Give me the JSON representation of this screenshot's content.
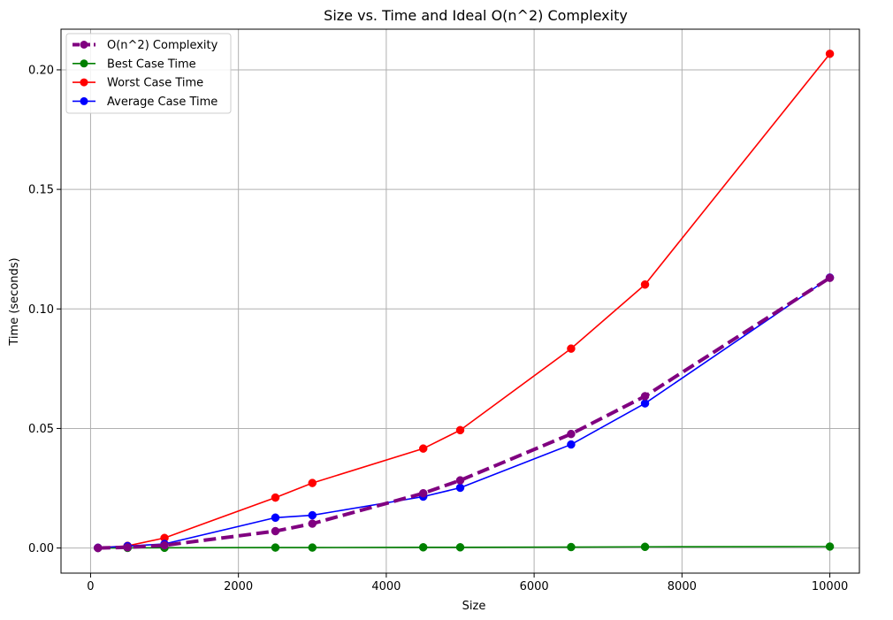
{
  "chart_data": {
    "type": "line",
    "title": "Size vs. Time and Ideal O(n^2) Complexity",
    "xlabel": "Size",
    "ylabel": "Time (seconds)",
    "xlim": [
      -400,
      10400
    ],
    "ylim": [
      -0.0105,
      0.217
    ],
    "x_ticks": [
      0,
      2000,
      4000,
      6000,
      8000,
      10000
    ],
    "x_tick_labels": [
      "0",
      "2000",
      "4000",
      "6000",
      "8000",
      "10000"
    ],
    "y_ticks": [
      0.0,
      0.05,
      0.1,
      0.15,
      0.2
    ],
    "y_tick_labels": [
      "0.00",
      "0.05",
      "0.10",
      "0.15",
      "0.20"
    ],
    "grid": true,
    "legend_position": "top-left",
    "x": [
      100,
      500,
      1000,
      2500,
      3000,
      4500,
      5000,
      6500,
      7500,
      10000
    ],
    "series": [
      {
        "name": "O(n^2) Complexity",
        "color": "#800080",
        "style": "dashed",
        "values": [
          1.13e-05,
          0.000283,
          0.00113,
          0.00706,
          0.0102,
          0.0229,
          0.0283,
          0.0477,
          0.0635,
          0.113
        ]
      },
      {
        "name": "Best Case Time",
        "color": "#008000",
        "style": "solid",
        "values": [
          1e-05,
          5e-05,
          0.0001,
          0.0002,
          0.0002,
          0.0003,
          0.0003,
          0.0004,
          0.0005,
          0.0006
        ]
      },
      {
        "name": "Worst Case Time",
        "color": "#ff0000",
        "style": "solid",
        "values": [
          0.0001,
          0.0009,
          0.0042,
          0.0211,
          0.0272,
          0.0416,
          0.0493,
          0.0834,
          0.1102,
          0.2067
        ]
      },
      {
        "name": "Average Case Time",
        "color": "#0000ff",
        "style": "solid",
        "values": [
          0.0001,
          0.0008,
          0.0017,
          0.0127,
          0.0137,
          0.0215,
          0.0252,
          0.0433,
          0.0605,
          0.1131
        ]
      }
    ]
  }
}
